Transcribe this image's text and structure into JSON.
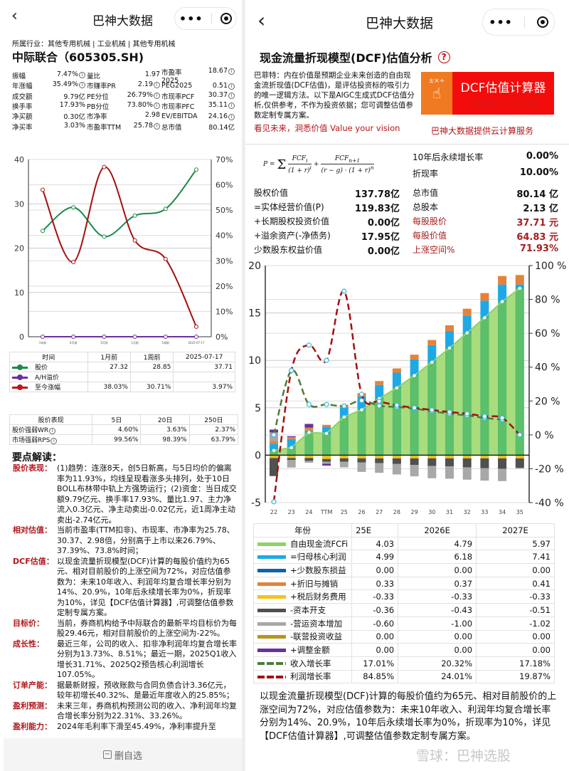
{
  "left": {
    "header": {
      "title": "巴神大数据"
    },
    "industry": "所属行业：其他专用机械 | 工业机械 | 其他专用机械",
    "stock_title": "中际联合（605305.SH)",
    "metrics": [
      [
        {
          "l": "振幅",
          "v": "7.47%",
          "i": true
        },
        {
          "l": "量比",
          "v": "1.97",
          "i": false
        },
        {
          "l": "市盈率2025",
          "v": "18.67",
          "i": true
        }
      ],
      [
        {
          "l": "年涨幅",
          "v": "35.49%",
          "i": true
        },
        {
          "l": "市赚率PR",
          "v": "2.19",
          "i": true
        },
        {
          "l": "PEG2025",
          "v": "0.51",
          "i": true
        }
      ],
      [
        {
          "l": "成交额",
          "v": "9.79亿",
          "i": false
        },
        {
          "l": "PE分位",
          "v": "26.79%",
          "i": true
        },
        {
          "l": "市现率PCF",
          "v": "30.37",
          "i": true
        }
      ],
      [
        {
          "l": "换手率",
          "v": "17.93%",
          "i": false
        },
        {
          "l": "PB分位",
          "v": "73.80%",
          "i": true
        },
        {
          "l": "市现率PFC",
          "v": "35.11",
          "i": true
        }
      ],
      [
        {
          "l": "净买额",
          "v": "0.30亿",
          "i": false
        },
        {
          "l": "市净率",
          "v": "2.98",
          "i": false
        },
        {
          "l": "EV/EBITDA",
          "v": "24.16",
          "i": true
        }
      ],
      [
        {
          "l": "净买率",
          "v": "3.03%",
          "i": false
        },
        {
          "l": "市盈率TTM",
          "v": "25.78",
          "i": true
        },
        {
          "l": "总市值",
          "v": "80.14亿",
          "i": false
        }
      ]
    ],
    "legend_table": {
      "headers": [
        "时间",
        "1月前",
        "1周前",
        "2025-07-17"
      ],
      "rows": [
        {
          "label": "股价",
          "color": "#1a8a4a",
          "values": [
            "27.32",
            "28.85",
            "37.71"
          ]
        },
        {
          "label": "A/H溢价",
          "color": "#6a2fa0",
          "values": [
            "",
            "",
            ""
          ]
        },
        {
          "label": "至今涨幅",
          "color": "#c0161b",
          "values": [
            "38.03%",
            "30.71%",
            "3.97%"
          ]
        }
      ]
    },
    "perf_table": {
      "headers": [
        "股价表现",
        "5日",
        "20日",
        "250日"
      ],
      "rows": [
        {
          "label": "股价强弱WR",
          "values": [
            "4.60%",
            "3.63%",
            "2.37%"
          ]
        },
        {
          "label": "市场强弱RPS",
          "values": [
            "99.56%",
            "98.39%",
            "63.79%"
          ]
        }
      ]
    },
    "analysis_title": "要点解读：",
    "sections": [
      {
        "k": "股价表现：",
        "t": "(1)趋势：连涨8天，创5日新高，与5日均价的偏离率为11.93%，均线呈现看涨多头排列，处于10日BOLL布林带中轨上方强势运行；(2)资金：当日成交额9.79亿元、换手率17.93%、量比1.97、主力净流入0.3亿元、净主动卖出-0.02亿元，近1周净主动卖出-2.74亿元。"
      },
      {
        "k": "相对估值：",
        "t": "当前市盈率(TTM扣非)、市现率、市净率为25.78、30.37、2.98倍，分别高于上市以来26.79%、37.39%、73.8%时间；"
      },
      {
        "k": "DCF估值：",
        "t": "以现金流量折现模型(DCF)计算的每股价值约为65元、相对目前股价的上涨空间为72%，对应估值参数为：未来10年收入、利润年均复合增长率分别为14%、20.9%，10年后永续增长率为0%，折现率为10%，详见【DCF估值计算器】,可调整估值参数定制专属方案。"
      },
      {
        "k": "目标价：",
        "t": "当前，券商机构给予中际联合的最新平均目标价为每股29.46元，相对目前股价的上涨空间为-22%。"
      },
      {
        "k": "成长性：",
        "t": "最近三年，公司的收入、扣非净利润年均复合增长率分别为13.73%、8.51%；最近一期，2025Q1收入增长31.71%、2025Q2预告核心利润增长107.05%。"
      },
      {
        "k": "订单产能：",
        "t": "据最新财报，预收账款与合同负债合计3.36亿元，较年初增长40.32%、是最近年度收入的25.85%；"
      },
      {
        "k": "盈利预测：",
        "t": "未来三年，券商机构预测公司的收入、净利润年均复合增长率分别为22.31%、33.26%。"
      },
      {
        "k": "盈利能力：",
        "t": "2024年毛利率下滑至45.49%，净利率提升至"
      }
    ],
    "bottom_button": "删自选"
  },
  "right": {
    "header": {
      "title": "巴神大数据"
    },
    "title": "现金流量折现模型(DCF)估值分析",
    "intro": "巴菲特：内在价值是预期企业未来创造的自由现金流折现值(DCF估值)，是评估投资标的吸引力的唯一逻辑方法。以下是AIGC生成式DCF估值分析,仅供参考，不作为投资依据；您可调整估值参数定制专属方案。",
    "slogan": "看见未来，洞悉价值 Value your vision",
    "banner": {
      "symbols": "±×÷",
      "title": "DCF估值计算器",
      "subtitle": "一图透视企业内在价值"
    },
    "banner_caption": "巴神大数据提供云计算服务",
    "params": [
      {
        "l": "10年后永续增长率",
        "v": "0.00%"
      },
      {
        "l": "折现率",
        "v": "10.00%"
      }
    ],
    "values_left": [
      {
        "l": "股权价值",
        "v": "137.78亿"
      },
      {
        "l": "=实体经营价值(P)",
        "v": "119.83亿"
      },
      {
        "l": "+长期股权投资价值",
        "v": "0.00亿"
      },
      {
        "l": "+溢余资产(-净债务)",
        "v": "17.95亿"
      },
      {
        "l": "少数股东权益价值",
        "v": "0.00亿"
      }
    ],
    "values_right": [
      {
        "l": "总市值",
        "v": "80.14 亿",
        "red": false
      },
      {
        "l": "总股本",
        "v": "2.13 亿",
        "red": false
      },
      {
        "l": "每股股价",
        "v": "37.71 元",
        "red": true
      },
      {
        "l": "每股价值",
        "v": "64.83 元",
        "red": true
      },
      {
        "l": "上涨空间%",
        "v": "71.93%",
        "red": true
      }
    ],
    "table": {
      "headers": [
        "年份",
        "25E",
        "2026E",
        "2027E"
      ],
      "rows": [
        {
          "label": "自由现金流FCFi",
          "color": "#8fd16a",
          "dashed": false,
          "values": [
            "4.03",
            "4.79",
            "5.97"
          ]
        },
        {
          "label": "=归母核心利润",
          "color": "#1ea9e6",
          "dashed": false,
          "values": [
            "4.99",
            "6.18",
            "7.41"
          ]
        },
        {
          "label": "+少数股东损益",
          "color": "#0d63a8",
          "dashed": false,
          "values": [
            "0.00",
            "0.00",
            "0.00"
          ]
        },
        {
          "label": "+折旧与摊销",
          "color": "#e5823a",
          "dashed": false,
          "values": [
            "0.33",
            "0.37",
            "0.41"
          ]
        },
        {
          "label": "+税后财务费用",
          "color": "#f4c21a",
          "dashed": false,
          "values": [
            "-0.33",
            "-0.33",
            "-0.33"
          ]
        },
        {
          "label": "-资本开支",
          "color": "#505050",
          "dashed": false,
          "values": [
            "-0.36",
            "-0.43",
            "-0.51"
          ]
        },
        {
          "label": "-营运资本增加",
          "color": "#a8a8a8",
          "dashed": false,
          "values": [
            "-0.60",
            "-1.00",
            "-1.02"
          ]
        },
        {
          "label": "-联营投资收益",
          "color": "#b8951a",
          "dashed": false,
          "values": [
            "0.00",
            "0.00",
            "0.00"
          ]
        },
        {
          "label": "+调整金额",
          "color": "#6a2fa0",
          "dashed": false,
          "values": [
            "0.00",
            "0.00",
            "0.00"
          ]
        },
        {
          "label": "收入增长率",
          "color": "#4e7d3a",
          "dashed": true,
          "values": [
            "17.01%",
            "20.32%",
            "17.18%"
          ]
        },
        {
          "label": "利润增长率",
          "color": "#a50f0f",
          "dashed": true,
          "values": [
            "84.85%",
            "24.01%",
            "19.87%"
          ]
        }
      ]
    },
    "summary": "以现金流量折现模型(DCF)计算的每股价值约为65元、相对目前股价的上涨空间为72%，对应估值参数为：未来10年收入、利润年均复合增长率分别为14%、20.9%，10年后永续增长率为0%，折现率为10%，详见【DCF估值计算器】,可调整估值参数定制专属方案。",
    "watermark": "雪球：巴神选股"
  },
  "chart_data": [
    {
      "type": "line",
      "x": [
        "1年前",
        "6月前",
        "3月前",
        "1月前",
        "1周前",
        "2025-07-17"
      ],
      "y_left": {
        "ticks": [
          "0",
          "10",
          "20",
          "30",
          "40"
        ],
        "range": [
          0,
          40
        ]
      },
      "y_right": {
        "ticks": [
          "0%",
          "10%",
          "20%",
          "30%",
          "40%",
          "50%",
          "60%",
          "70%"
        ],
        "range": [
          0,
          70
        ]
      },
      "series": [
        {
          "name": "股价",
          "axis": "left",
          "color": "#1a8a4a",
          "values": [
            23.9,
            29.2,
            22.6,
            27.32,
            28.85,
            37.71
          ]
        },
        {
          "name": "A/H溢价",
          "axis": "left",
          "color": "#6a2fa0",
          "values": [
            0,
            0,
            0,
            0,
            0,
            0
          ]
        },
        {
          "name": "至今涨幅",
          "axis": "right",
          "color": "#a50f0f",
          "values": [
            58,
            29.5,
            67,
            38.03,
            30.71,
            3.97
          ]
        }
      ],
      "grid": true
    },
    {
      "type": "bar",
      "categories": [
        "22",
        "23",
        "24",
        "TTM",
        "25",
        "26",
        "27",
        "28",
        "29",
        "30",
        "31",
        "32",
        "33",
        "34",
        "35"
      ],
      "y_left": {
        "ticks": [
          "-5",
          "0",
          "5",
          "10",
          "15",
          "20"
        ],
        "range": [
          -5,
          20
        ]
      },
      "y_right": {
        "ticks": [
          "-40 %",
          "-20 %",
          "0 %",
          "20 %",
          "40 %",
          "60 %",
          "80 %",
          "100 %"
        ],
        "range": [
          -40,
          100
        ]
      },
      "series": [
        {
          "name": "自由现金流FCFi",
          "kind": "area",
          "color": "#8fd16a",
          "values": [
            0.5,
            0.8,
            2.4,
            2.3,
            4.03,
            4.79,
            5.97,
            7.1,
            8.4,
            9.8,
            11.3,
            12.9,
            14.5,
            16.2,
            17.6
          ]
        },
        {
          "name": "=归母核心利润",
          "kind": "bar",
          "color": "#1ea9e6",
          "values": [
            1.2,
            1.7,
            2.6,
            3.0,
            4.99,
            6.18,
            7.41,
            8.7,
            10.1,
            11.6,
            13.1,
            14.7,
            16.3,
            18.0,
            18.0
          ]
        },
        {
          "name": "+少数股东损益",
          "kind": "bar",
          "color": "#0d63a8",
          "values": [
            0,
            0,
            0,
            0,
            0,
            0,
            0,
            0,
            0,
            0,
            0,
            0,
            0,
            0,
            0
          ]
        },
        {
          "name": "+折旧与摊销",
          "kind": "bar",
          "color": "#e5823a",
          "values": [
            0.3,
            0.2,
            0.3,
            0.2,
            0.33,
            0.37,
            0.41,
            0.45,
            0.5,
            0.55,
            0.6,
            0.75,
            0.8,
            0.9,
            1.0
          ]
        },
        {
          "name": "+税后财务费用",
          "kind": "bar",
          "color": "#f4c21a",
          "values": [
            -0.3,
            -0.3,
            -0.3,
            -0.4,
            -0.33,
            -0.33,
            -0.33,
            -0.33,
            -0.33,
            -0.33,
            -0.33,
            -0.33,
            -0.33,
            -0.33,
            -0.33
          ]
        },
        {
          "name": "-资本开支",
          "kind": "bar",
          "color": "#505050",
          "values": [
            -1.9,
            -0.2,
            -0.3,
            -0.3,
            -0.36,
            -0.43,
            -0.51,
            -0.6,
            -0.7,
            -0.8,
            -0.85,
            -0.95,
            -1.05,
            -1.1,
            -1.0
          ]
        },
        {
          "name": "-营运资本增加",
          "kind": "bar",
          "color": "#a8a8a8",
          "values": [
            0.9,
            -0.8,
            -0.2,
            -0.2,
            -0.6,
            -1.0,
            -1.02,
            -1.1,
            -1.2,
            -1.3,
            -1.3,
            -1.3,
            -1.3,
            -1.3,
            -0.1
          ]
        },
        {
          "name": "-联营投资收益",
          "kind": "bar",
          "color": "#b8951a",
          "values": [
            0,
            0,
            0,
            0,
            0,
            0,
            0,
            0,
            0,
            0,
            0,
            0,
            0,
            0,
            0
          ]
        },
        {
          "name": "+调整金额",
          "kind": "bar",
          "color": "#6a2fa0",
          "values": [
            0.3,
            0.1,
            0.4,
            -0.2,
            0,
            0,
            0,
            0,
            0,
            0,
            0,
            0,
            0,
            0,
            0
          ]
        },
        {
          "name": "收入增长率",
          "kind": "line",
          "axis": "right",
          "color": "#4e7d3a",
          "values": [
            0,
            38,
            18,
            18,
            17.01,
            20.32,
            17.18,
            16.5,
            15.5,
            14,
            12.5,
            11.5,
            10,
            9,
            null
          ]
        },
        {
          "name": "利润增长率",
          "kind": "line",
          "axis": "right",
          "color": "#a50f0f",
          "values": [
            -39.5,
            38,
            53,
            44,
            84.85,
            24.01,
            19.87,
            17.5,
            16,
            14.7,
            13.5,
            12.5,
            11,
            10,
            0
          ]
        }
      ],
      "grid": true
    }
  ]
}
